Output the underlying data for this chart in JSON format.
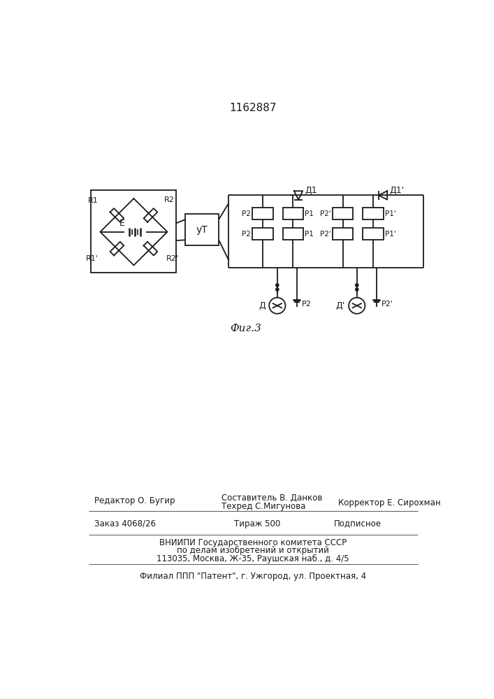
{
  "title": "1162887",
  "fig_label": "Фиг.3",
  "bg_color": "#ffffff",
  "line_color": "#1a1a1a",
  "lw": 1.3,
  "footer": {
    "editor": "Редактор О. Бугир",
    "composer": "Составитель В. Данков",
    "techred": "Техред С.Мигунова",
    "corrector": "Корректор Е. Сирохман",
    "order": "Заказ 4068/26",
    "tirazh": "Тираж 500",
    "podpisnoe": "Подписное",
    "vniipи1": "ВНИИПИ Государственного комитета СССР",
    "vniipи2": "по делам изобретений и открытий",
    "address": "113035, Москва, Ж-35, Раушская наб., д. 4/5",
    "filial": "Филиал ППП \"Патент\", г. Ужгород, ул. Проектная, 4"
  }
}
